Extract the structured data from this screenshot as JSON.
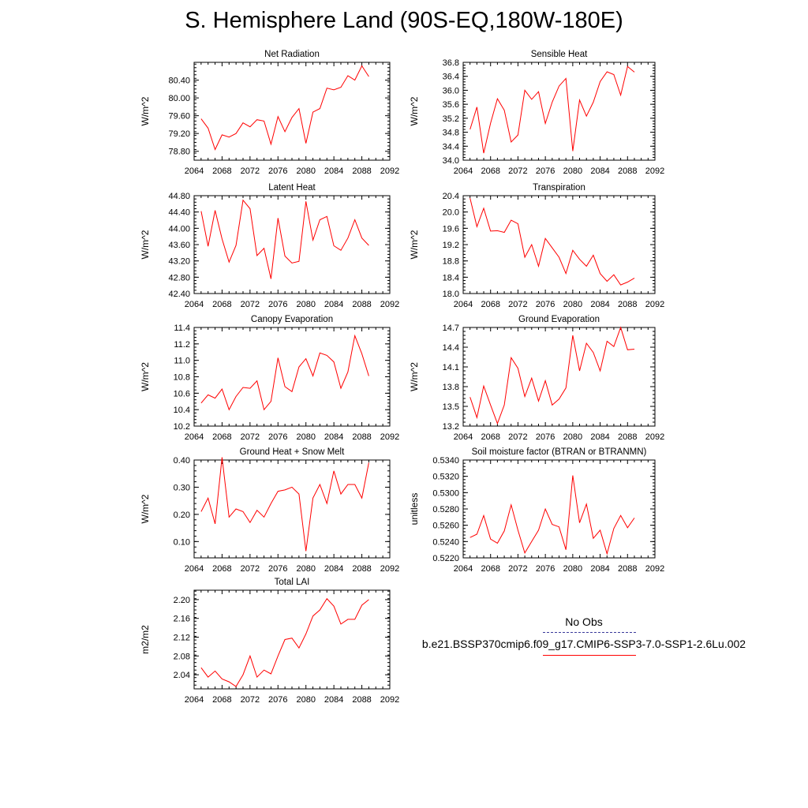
{
  "title": "S. Hemisphere Land (90S-EQ,180W-180E)",
  "chart_data": [
    {
      "type": "line",
      "title": "Net Radiation",
      "ylabel": "W/m^2",
      "xlim": [
        2064,
        2092
      ],
      "ylim": [
        78.6,
        80.8
      ],
      "xticks": [
        "2064",
        "2068",
        "2072",
        "2076",
        "2080",
        "2084",
        "2088",
        "2092"
      ],
      "yticks": [
        "78.80",
        "79.20",
        "79.60",
        "80.00",
        "80.40"
      ],
      "series": [
        {
          "color": "#ff0000",
          "x": [
            2065,
            2066,
            2067,
            2068,
            2069,
            2070,
            2071,
            2072,
            2073,
            2074,
            2075,
            2076,
            2077,
            2078,
            2079,
            2080,
            2081,
            2082,
            2083,
            2084,
            2085,
            2086,
            2087,
            2088,
            2089
          ],
          "y": [
            79.53,
            79.32,
            78.84,
            79.17,
            79.12,
            79.2,
            79.44,
            79.35,
            79.51,
            79.48,
            78.96,
            79.58,
            79.24,
            79.56,
            79.76,
            78.98,
            79.68,
            79.76,
            80.22,
            80.18,
            80.24,
            80.5,
            80.4,
            80.72,
            80.48
          ]
        }
      ]
    },
    {
      "type": "line",
      "title": "Sensible Heat",
      "ylabel": "W/m^2",
      "xlim": [
        2064,
        2092
      ],
      "ylim": [
        34.0,
        36.8
      ],
      "xticks": [
        "2064",
        "2068",
        "2072",
        "2076",
        "2080",
        "2084",
        "2088",
        "2092"
      ],
      "yticks": [
        "34.0",
        "34.4",
        "34.8",
        "35.2",
        "35.6",
        "36.0",
        "36.4",
        "36.8"
      ],
      "series": [
        {
          "color": "#ff0000",
          "x": [
            2065,
            2066,
            2067,
            2068,
            2069,
            2070,
            2071,
            2072,
            2073,
            2074,
            2075,
            2076,
            2077,
            2078,
            2079,
            2080,
            2081,
            2082,
            2083,
            2084,
            2085,
            2086,
            2087,
            2088,
            2089
          ],
          "y": [
            34.88,
            35.52,
            34.2,
            35.06,
            35.76,
            35.43,
            34.52,
            34.72,
            36.0,
            35.74,
            35.96,
            35.05,
            35.66,
            36.12,
            36.34,
            34.26,
            35.72,
            35.26,
            35.66,
            36.25,
            36.53,
            36.45,
            35.86,
            36.68,
            36.52
          ]
        }
      ]
    },
    {
      "type": "line",
      "title": "Latent Heat",
      "ylabel": "W/m^2",
      "xlim": [
        2064,
        2092
      ],
      "ylim": [
        42.4,
        44.8
      ],
      "xticks": [
        "2064",
        "2068",
        "2072",
        "2076",
        "2080",
        "2084",
        "2088",
        "2092"
      ],
      "yticks": [
        "42.40",
        "42.80",
        "43.20",
        "43.60",
        "44.00",
        "44.40",
        "44.80"
      ],
      "series": [
        {
          "color": "#ff0000",
          "x": [
            2065,
            2066,
            2067,
            2068,
            2069,
            2070,
            2071,
            2072,
            2073,
            2074,
            2075,
            2076,
            2077,
            2078,
            2079,
            2080,
            2081,
            2082,
            2083,
            2084,
            2085,
            2086,
            2087,
            2088,
            2089
          ],
          "y": [
            44.42,
            43.56,
            44.44,
            43.74,
            43.17,
            43.58,
            44.69,
            44.48,
            43.33,
            43.51,
            42.76,
            44.25,
            43.32,
            43.15,
            43.19,
            44.66,
            43.71,
            44.21,
            44.29,
            43.57,
            43.46,
            43.76,
            44.21,
            43.76,
            43.58
          ]
        }
      ]
    },
    {
      "type": "line",
      "title": "Transpiration",
      "ylabel": "W/m^2",
      "xlim": [
        2064,
        2092
      ],
      "ylim": [
        18.0,
        20.4
      ],
      "xticks": [
        "2064",
        "2068",
        "2072",
        "2076",
        "2080",
        "2084",
        "2088",
        "2092"
      ],
      "yticks": [
        "18.0",
        "18.4",
        "18.8",
        "19.2",
        "19.6",
        "20.0",
        "20.4"
      ],
      "series": [
        {
          "color": "#ff0000",
          "x": [
            2065,
            2066,
            2067,
            2068,
            2069,
            2070,
            2071,
            2072,
            2073,
            2074,
            2075,
            2076,
            2077,
            2078,
            2079,
            2080,
            2081,
            2082,
            2083,
            2084,
            2085,
            2086,
            2087,
            2088,
            2089
          ],
          "y": [
            20.34,
            19.64,
            20.09,
            19.53,
            19.54,
            19.5,
            19.8,
            19.71,
            18.89,
            19.2,
            18.67,
            19.35,
            19.12,
            18.89,
            18.49,
            19.06,
            18.84,
            18.67,
            18.94,
            18.49,
            18.3,
            18.46,
            18.21,
            18.28,
            18.38
          ]
        }
      ]
    },
    {
      "type": "line",
      "title": "Canopy Evaporation",
      "ylabel": "W/m^2",
      "xlim": [
        2064,
        2092
      ],
      "ylim": [
        10.2,
        11.4
      ],
      "xticks": [
        "2064",
        "2068",
        "2072",
        "2076",
        "2080",
        "2084",
        "2088",
        "2092"
      ],
      "yticks": [
        "10.2",
        "10.4",
        "10.6",
        "10.8",
        "11.0",
        "11.2",
        "11.4"
      ],
      "series": [
        {
          "color": "#ff0000",
          "x": [
            2065,
            2066,
            2067,
            2068,
            2069,
            2070,
            2071,
            2072,
            2073,
            2074,
            2075,
            2076,
            2077,
            2078,
            2079,
            2080,
            2081,
            2082,
            2083,
            2084,
            2085,
            2086,
            2087,
            2088,
            2089
          ],
          "y": [
            10.48,
            10.58,
            10.54,
            10.65,
            10.4,
            10.56,
            10.67,
            10.66,
            10.75,
            10.4,
            10.5,
            11.03,
            10.68,
            10.62,
            10.92,
            11.02,
            10.81,
            11.09,
            11.06,
            10.98,
            10.66,
            10.86,
            11.3,
            11.08,
            10.81
          ]
        }
      ]
    },
    {
      "type": "line",
      "title": "Ground Evaporation",
      "ylabel": "W/m^2",
      "xlim": [
        2064,
        2092
      ],
      "ylim": [
        13.2,
        14.7
      ],
      "xticks": [
        "2064",
        "2068",
        "2072",
        "2076",
        "2080",
        "2084",
        "2088",
        "2092"
      ],
      "yticks": [
        "13.2",
        "13.5",
        "13.8",
        "14.1",
        "14.4",
        "14.7"
      ],
      "series": [
        {
          "color": "#ff0000",
          "x": [
            2065,
            2066,
            2067,
            2068,
            2069,
            2070,
            2071,
            2072,
            2073,
            2074,
            2075,
            2076,
            2077,
            2078,
            2079,
            2080,
            2081,
            2082,
            2083,
            2084,
            2085,
            2086,
            2087,
            2088,
            2089
          ],
          "y": [
            13.64,
            13.33,
            13.81,
            13.52,
            13.24,
            13.52,
            14.24,
            14.08,
            13.65,
            13.93,
            13.58,
            13.89,
            13.52,
            13.61,
            13.78,
            14.58,
            14.04,
            14.46,
            14.32,
            14.04,
            14.49,
            14.41,
            14.7,
            14.36,
            14.37
          ]
        }
      ]
    },
    {
      "type": "line",
      "title": "Ground Heat + Snow Melt",
      "ylabel": "W/m^2",
      "xlim": [
        2064,
        2092
      ],
      "ylim": [
        0.04,
        0.4
      ],
      "xticks": [
        "2064",
        "2068",
        "2072",
        "2076",
        "2080",
        "2084",
        "2088",
        "2092"
      ],
      "yticks": [
        "0.10",
        "0.20",
        "0.30",
        "0.40"
      ],
      "series": [
        {
          "color": "#ff0000",
          "x": [
            2065,
            2066,
            2067,
            2068,
            2069,
            2070,
            2071,
            2072,
            2073,
            2074,
            2075,
            2076,
            2077,
            2078,
            2079,
            2080,
            2081,
            2082,
            2083,
            2084,
            2085,
            2086,
            2087,
            2088,
            2089
          ],
          "y": [
            0.21,
            0.26,
            0.165,
            0.41,
            0.19,
            0.22,
            0.21,
            0.17,
            0.215,
            0.19,
            0.24,
            0.285,
            0.29,
            0.3,
            0.275,
            0.065,
            0.26,
            0.31,
            0.24,
            0.36,
            0.275,
            0.31,
            0.31,
            0.26,
            0.39
          ]
        }
      ]
    },
    {
      "type": "line",
      "title": "Soil moisture factor (BTRAN or BTRANMN)",
      "ylabel": "unitless",
      "xlim": [
        2064,
        2092
      ],
      "ylim": [
        0.522,
        0.534
      ],
      "xticks": [
        "2064",
        "2068",
        "2072",
        "2076",
        "2080",
        "2084",
        "2088",
        "2092"
      ],
      "yticks": [
        "0.5220",
        "0.5240",
        "0.5260",
        "0.5280",
        "0.5300",
        "0.5320",
        "0.5340"
      ],
      "series": [
        {
          "color": "#ff0000",
          "x": [
            2065,
            2066,
            2067,
            2068,
            2069,
            2070,
            2071,
            2072,
            2073,
            2074,
            2075,
            2076,
            2077,
            2078,
            2079,
            2080,
            2081,
            2082,
            2083,
            2084,
            2085,
            2086,
            2087,
            2088,
            2089
          ],
          "y": [
            0.5245,
            0.5249,
            0.5272,
            0.5243,
            0.5238,
            0.5253,
            0.5285,
            0.5254,
            0.5226,
            0.524,
            0.5254,
            0.528,
            0.5261,
            0.5258,
            0.523,
            0.5321,
            0.5263,
            0.5286,
            0.5244,
            0.5254,
            0.5225,
            0.5256,
            0.5272,
            0.5257,
            0.5269
          ]
        }
      ]
    },
    {
      "type": "line",
      "title": "Total LAI",
      "ylabel": "m2/m2",
      "xlim": [
        2064,
        2092
      ],
      "ylim": [
        2.01,
        2.22
      ],
      "xticks": [
        "2064",
        "2068",
        "2072",
        "2076",
        "2080",
        "2084",
        "2088",
        "2092"
      ],
      "yticks": [
        "2.04",
        "2.08",
        "2.12",
        "2.16",
        "2.20"
      ],
      "series": [
        {
          "color": "#ff0000",
          "x": [
            2065,
            2066,
            2067,
            2068,
            2069,
            2070,
            2071,
            2072,
            2073,
            2074,
            2075,
            2076,
            2077,
            2078,
            2079,
            2080,
            2081,
            2082,
            2083,
            2084,
            2085,
            2086,
            2087,
            2088,
            2089
          ],
          "y": [
            2.055,
            2.035,
            2.048,
            2.031,
            2.025,
            2.015,
            2.04,
            2.08,
            2.035,
            2.05,
            2.042,
            2.08,
            2.115,
            2.118,
            2.097,
            2.127,
            2.165,
            2.178,
            2.202,
            2.186,
            2.148,
            2.158,
            2.158,
            2.188,
            2.2
          ]
        }
      ]
    }
  ],
  "legend": {
    "obs_label": "No Obs",
    "obs_color": "#3a3a9a",
    "model_label": "b.e21.BSSP370cmip6.f09_g17.CMIP6-SSP3-7.0-SSP1-2.6Lu.002",
    "model_color": "#ff0000"
  }
}
